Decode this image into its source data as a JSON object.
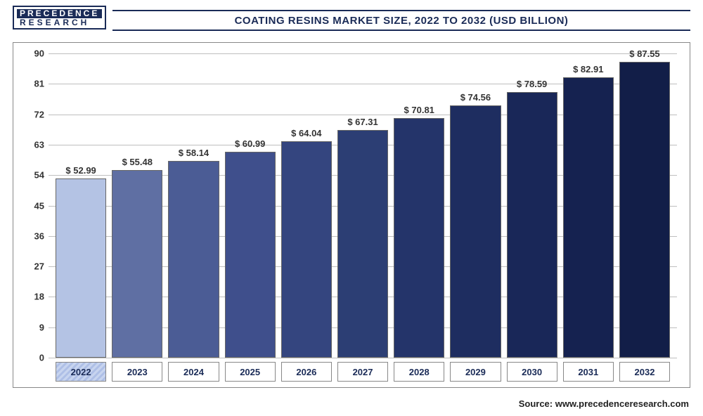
{
  "logo": {
    "line1": "PRECEDENCE",
    "line2": "RESEARCH"
  },
  "title": "COATING RESINS MARKET SIZE, 2022 TO 2032 (USD BILLION)",
  "chart": {
    "type": "bar",
    "ylim": [
      0,
      90
    ],
    "ytick_step": 9,
    "yticks": [
      0,
      9,
      18,
      27,
      36,
      45,
      54,
      63,
      72,
      81,
      90
    ],
    "grid_color": "#bfbfbf",
    "background_color": "#ffffff",
    "axis_font_size": 13,
    "label_font_size": 13,
    "label_font_weight": "bold",
    "bar_border_color": "#666666",
    "categories": [
      "2022",
      "2023",
      "2024",
      "2025",
      "2026",
      "2027",
      "2028",
      "2029",
      "2030",
      "2031",
      "2032"
    ],
    "values": [
      52.99,
      55.48,
      58.14,
      60.99,
      64.04,
      67.31,
      70.81,
      74.56,
      78.59,
      82.91,
      87.55
    ],
    "value_labels": [
      "$ 52.99",
      "$ 55.48",
      "$ 58.14",
      "$ 60.99",
      "$ 64.04",
      "$ 67.31",
      "$ 70.81",
      "$ 74.56",
      "$ 78.59",
      "$ 82.91",
      "$ 87.55"
    ],
    "bar_colors": [
      "#b4c3e4",
      "#5f6fa3",
      "#4b5c95",
      "#3f4f8c",
      "#34457f",
      "#2c3e74",
      "#24346a",
      "#1e2d60",
      "#192758",
      "#152250",
      "#121e48"
    ],
    "highlighted_index": 0,
    "highlighted_box_pattern": true
  },
  "source": "Source: www.precedenceresearch.com"
}
